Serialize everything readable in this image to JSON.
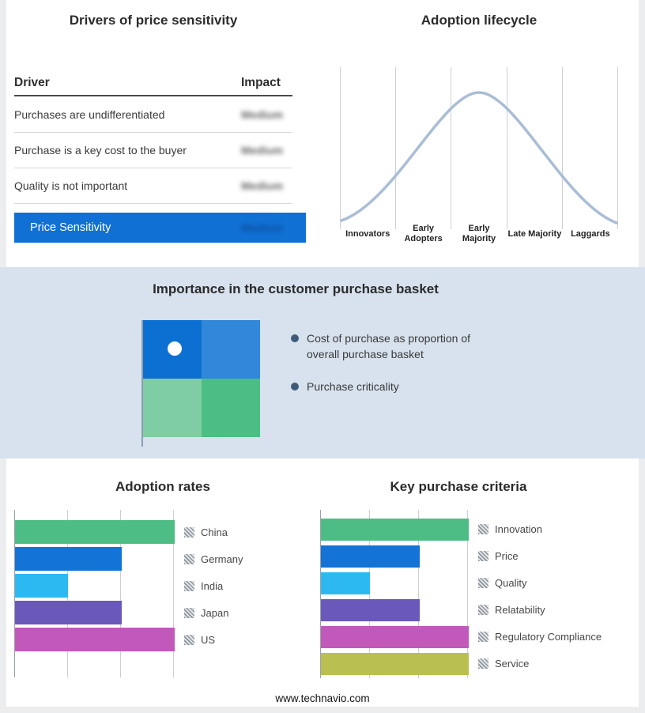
{
  "page": {
    "footer_url": "www.technavio.com",
    "background": "#ecedef",
    "band_background": "#d7e2ee"
  },
  "drivers": {
    "highlight_color": "#1170d4"
  },
  "basket": {
    "title": "Importance in the customer purchase basket",
    "bullets": [
      {
        "text": "Cost of purchase as proportion of overall purchase basket"
      },
      {
        "text": "Purchase criticality"
      }
    ],
    "quadrants": {
      "top_left": "#0c70d3",
      "top_right": "#3187da",
      "bottom_left": "#7fcda4",
      "bottom_right": "#4cbd85"
    },
    "bullet_color": "#3e5a78"
  },
  "chart_data": [
    {
      "type": "table",
      "title": "Drivers of price sensitivity",
      "columns": [
        "Driver",
        "Impact"
      ],
      "rows": [
        [
          "Purchases are undifferentiated",
          "Medium"
        ],
        [
          "Purchase is a key cost to the buyer",
          "Medium"
        ],
        [
          "Quality is not important",
          "Medium"
        ],
        [
          "Price Sensitivity",
          "Medium"
        ]
      ],
      "impact_values_redacted_blur": true
    },
    {
      "type": "line",
      "title": "Adoption lifecycle",
      "x": [
        "Innovators",
        "Early Adopters",
        "Early Majority",
        "Late Majority",
        "Laggards"
      ],
      "shape": "bell curve peaking at Early Majority",
      "line_color": "#aabdd6",
      "grid": true
    },
    {
      "type": "bar",
      "title": "Adoption rates",
      "orientation": "horizontal",
      "categories": [
        "China",
        "Germany",
        "India",
        "Japan",
        "US"
      ],
      "values": [
        3,
        2,
        1,
        2,
        3
      ],
      "xmax": 3,
      "colors": [
        "#4dbd85",
        "#1373d6",
        "#2cb9f2",
        "#6b58bb",
        "#c258ba"
      ],
      "grid": true,
      "legend_position": "right"
    },
    {
      "type": "bar",
      "title": "Key purchase criteria",
      "orientation": "horizontal",
      "categories": [
        "Innovation",
        "Price",
        "Quality",
        "Relatability",
        "Regulatory Compliance",
        "Service"
      ],
      "values": [
        3,
        2,
        1,
        2,
        3,
        3
      ],
      "xmax": 3,
      "colors": [
        "#4dbd85",
        "#1373d6",
        "#2cb9f2",
        "#6b58bb",
        "#c258ba",
        "#babf52"
      ],
      "grid": true,
      "legend_position": "right"
    }
  ]
}
